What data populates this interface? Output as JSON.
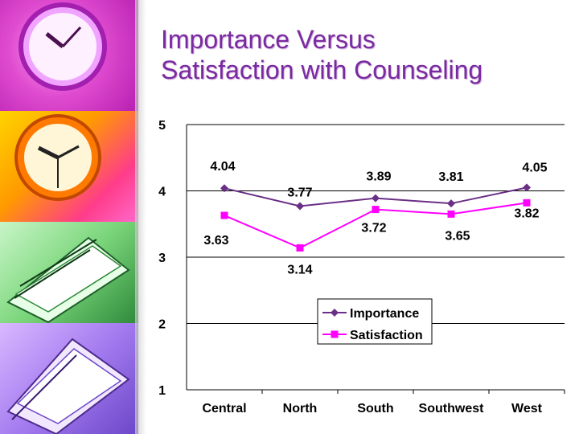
{
  "title_line1": "Importance Versus",
  "title_line2": "Satisfaction with Counseling",
  "chart_data": {
    "type": "line",
    "categories": [
      "Central",
      "North",
      "South",
      "Southwest",
      "West"
    ],
    "series": [
      {
        "name": "Importance",
        "values": [
          4.04,
          3.77,
          3.89,
          3.81,
          4.05
        ],
        "color": "#6a2f86",
        "marker": "diamond"
      },
      {
        "name": "Satisfaction",
        "values": [
          3.63,
          3.14,
          3.72,
          3.65,
          3.82
        ],
        "color": "#ff00ff",
        "marker": "square"
      }
    ],
    "y_ticks": [
      1,
      2,
      3,
      4,
      5
    ],
    "ylim": [
      1,
      5
    ],
    "grid": true,
    "legend_position": "bottom-center",
    "labels": {
      "Importance": [
        "4.04",
        "3.77",
        "3.89",
        "3.81",
        "4.05"
      ],
      "Satisfaction": [
        "3.63",
        "3.14",
        "3.72",
        "3.65",
        "3.82"
      ]
    }
  },
  "icons": {
    "panel1": "clock-purple-icon",
    "panel2": "clock-orange-icon",
    "panel3": "stack-papers-green-icon",
    "panel4": "stack-papers-purple-icon"
  }
}
